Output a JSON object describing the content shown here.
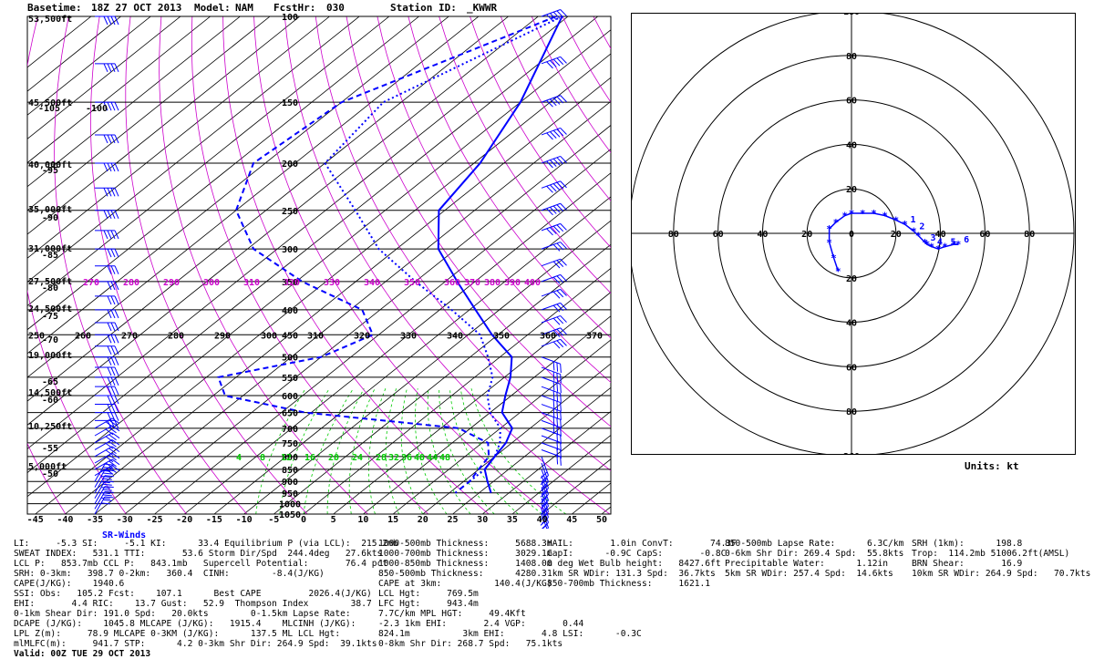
{
  "header": {
    "basetime_label": "Basetime:",
    "basetime": "18Z 27 OCT 2013",
    "model_label": "Model:",
    "model": "NAM",
    "fcsthr_label": "FcstHr:",
    "fcsthr": "030",
    "station_label": "Station ID:",
    "station": "_KWWR"
  },
  "colors": {
    "temperature": "#0000ff",
    "isobar": "#000000",
    "dry_adiabat": "#cc00cc",
    "moist_adiabat": "#00cc00",
    "wind_barb": "#0000ff"
  },
  "chart_data": [
    {
      "type": "line",
      "subtype": "skew-t log-p sounding",
      "xlim": [
        -45,
        50
      ],
      "x_ticks": [
        "-45",
        "-40",
        "-35",
        "-30",
        "-25",
        "-20",
        "-15",
        "-10",
        "-5",
        "0",
        "5",
        "10",
        "15",
        "20",
        "25",
        "30",
        "35",
        "40",
        "45",
        "50"
      ],
      "pressure_labels": [
        "100",
        "150",
        "200",
        "250",
        "300",
        "350",
        "400",
        "450",
        "500",
        "550",
        "600",
        "650",
        "700",
        "750",
        "800",
        "850",
        "900",
        "950",
        "1000",
        "1050"
      ],
      "height_labels": [
        "53,500ft",
        "45,500ft",
        "40,000ft",
        "35,000ft",
        "31,000ft",
        "27,500ft",
        "24,500ft",
        "19,000ft",
        "14,500ft",
        "10,250ft",
        "5,000ft"
      ],
      "left_temp_labels": [
        "-105",
        "-100",
        "-95",
        "-90",
        "-85",
        "-80",
        "-75",
        "-70",
        "-65",
        "-60",
        "-55",
        "-50"
      ],
      "theta_labels_350": [
        "270",
        "280",
        "290",
        "300",
        "310",
        "320",
        "330",
        "340",
        "350",
        "360",
        "370",
        "380",
        "390",
        "400"
      ],
      "theta_labels_450": [
        "250",
        "260",
        "270",
        "280",
        "290",
        "300",
        "310",
        "320",
        "330",
        "340",
        "350",
        "360",
        "370"
      ],
      "theta_e_labels_800": [
        "4",
        "8",
        "12",
        "16",
        "20",
        "24",
        "28",
        "32",
        "36",
        "40",
        "44",
        "48"
      ],
      "series": [
        {
          "name": "",
          "style": "solid",
          "points": [
            [
              100,
              -61
            ],
            [
              150,
              -50
            ],
            [
              200,
              -44
            ],
            [
              250,
              -41
            ],
            [
              300,
              -33
            ],
            [
              350,
              -23
            ],
            [
              400,
              -14
            ],
            [
              450,
              -6
            ],
            [
              500,
              2
            ],
            [
              550,
              6
            ],
            [
              600,
              9
            ],
            [
              650,
              12
            ],
            [
              700,
              17
            ],
            [
              750,
              19
            ],
            [
              800,
              20
            ],
            [
              850,
              21
            ],
            [
              900,
              24
            ],
            [
              950,
              27
            ]
          ]
        },
        {
          "name": "",
          "style": "dashed",
          "points": [
            [
              100,
              -62
            ],
            [
              150,
              -80
            ],
            [
              200,
              -82
            ],
            [
              250,
              -75
            ],
            [
              300,
              -64
            ],
            [
              350,
              -49
            ],
            [
              400,
              -33
            ],
            [
              450,
              -26
            ],
            [
              500,
              -30
            ],
            [
              550,
              -43
            ],
            [
              600,
              -38
            ],
            [
              650,
              -21
            ],
            [
              700,
              8
            ],
            [
              750,
              16
            ],
            [
              800,
              19
            ],
            [
              850,
              20
            ],
            [
              900,
              21
            ],
            [
              950,
              21
            ]
          ]
        },
        {
          "name": "",
          "style": "dotted",
          "points": [
            [
              100,
              -61
            ],
            [
              150,
              -73
            ],
            [
              200,
              -70
            ],
            [
              250,
              -55
            ],
            [
              300,
              -43
            ],
            [
              350,
              -30
            ],
            [
              400,
              -18
            ],
            [
              450,
              -8
            ],
            [
              500,
              -2
            ],
            [
              550,
              3
            ],
            [
              600,
              6
            ],
            [
              650,
              10
            ],
            [
              700,
              15
            ],
            [
              750,
              18
            ],
            [
              800,
              20
            ],
            [
              850,
              21
            ],
            [
              900,
              21
            ]
          ]
        }
      ]
    },
    {
      "type": "scatter",
      "subtype": "hodograph",
      "units": "kt",
      "ring_labels_top": [
        "180",
        "80",
        "60",
        "40",
        "20"
      ],
      "ring_labels_bottom": [
        "20",
        "40",
        "60",
        "80",
        "360"
      ],
      "axis_labels": [
        "90",
        "80",
        "60",
        "40",
        "20",
        "0",
        "20",
        "40",
        "60",
        "80",
        "270"
      ],
      "height_markers": [
        "1",
        "2",
        "3",
        "4",
        "5",
        "6"
      ],
      "points_u_v": [
        [
          -6,
          -17
        ],
        [
          -8,
          -11
        ],
        [
          -10,
          -4
        ],
        [
          -10,
          2
        ],
        [
          -7,
          5
        ],
        [
          -3,
          8
        ],
        [
          0,
          9
        ],
        [
          5,
          9
        ],
        [
          10,
          9
        ],
        [
          15,
          8
        ],
        [
          20,
          6
        ],
        [
          24,
          4
        ],
        [
          28,
          1
        ],
        [
          30,
          -1
        ],
        [
          33,
          -4
        ],
        [
          34,
          -5
        ],
        [
          36,
          -6
        ],
        [
          39,
          -7
        ],
        [
          42,
          -6
        ],
        [
          46,
          -5
        ],
        [
          48,
          -5
        ]
      ]
    }
  ],
  "hodo_units": "Units: kt",
  "sr_winds_label": "SR-Winds",
  "indices_rows": [
    [
      "LI:     -5.3 SI:     -5.1 KI:      33.4 Equilibrium P (via LCL):  215.2mb",
      "1000-500mb Thickness:     5688.3m",
      "HAIL:       1.0in ConvT:       74.3F",
      "850-500mb Lapse Rate:      6.3C/km",
      "SRH (1km):      198.8"
    ],
    [
      "SWEAT INDEX:   531.1 TTI:       53.6 Storm Dir/Spd  244.4deg   27.6kts",
      "1000-700mb Thickness:     3029.1m",
      "CapI:      -0.9C CapS:       -0.8C",
      "0-6km Shr Dir: 269.4 Spd:  55.8kts",
      "Trop:  114.2mb 51006.2ft(AMSL)"
    ],
    [
      "LCL P:   853.7mb CCL P:   843.1mb   Supercell Potential:       76.4 pct",
      "1000-850mb Thickness:     1408.0m",
      "0 deg Wet Bulb height:   8427.6ft",
      "Precipitable Water:      1.12in",
      "BRN Shear:       16.9"
    ],
    [
      "SRH: 0-3km:   398.7 0-2km:   360.4  CINH:        -8.4(J/KG)",
      "850-500mb Thickness:      4280.3",
      "1km SR WDir: 131.3 Spd:  36.7kts",
      "5km SR WDir: 257.4 Spd:  14.6kts",
      "10km SR WDir: 264.9 Spd:   70.7kts"
    ],
    [
      "CAPE(J/KG):    1940.6",
      "CAPE at 3km:          140.4(J/KG)",
      "850-700mb Thickness:     1621.1",
      "",
      ""
    ],
    [
      "SSI: Obs:   105.2 Fcst:    107.1      Best CAPE         2026.4(J/KG)",
      "LCL Hgt:     769.5m",
      "",
      "",
      ""
    ],
    [
      "EHI:       4.4 RIC:    13.7 Gust:   52.9  Thompson Index        38.7",
      "LFC Hgt:     943.4m",
      "",
      "",
      ""
    ],
    [
      "0-1km Shear Dir: 191.0 Spd:   20.0kts        0-1.5km Lapse Rate:",
      "7.7C/km MPL HGT:     49.4Kft",
      "",
      "",
      ""
    ],
    [
      "DCAPE (J/KG):    1045.8 MLCAPE (J/KG):   1915.4    MLCINH (J/KG):",
      "-2.3 1km EHI:       2.4 VGP:       0.44",
      "",
      "",
      ""
    ],
    [
      "LPL Z(m):     78.9 MLCAPE 0-3KM (J/KG):      137.5 ML LCL Hgt:",
      "824.1m          3km EHI:       4.8 LSI:      -0.3C",
      "",
      "",
      ""
    ],
    [
      "mlMLFC(m):     941.7 STP:      4.2 0-3km Shr Dir: 264.9 Spd:  39.1kts",
      "0-8km Shr Dir: 268.7 Spd:   75.1kts",
      "",
      "",
      ""
    ]
  ],
  "valid": "Valid: 00Z TUE 29 OCT 2013"
}
